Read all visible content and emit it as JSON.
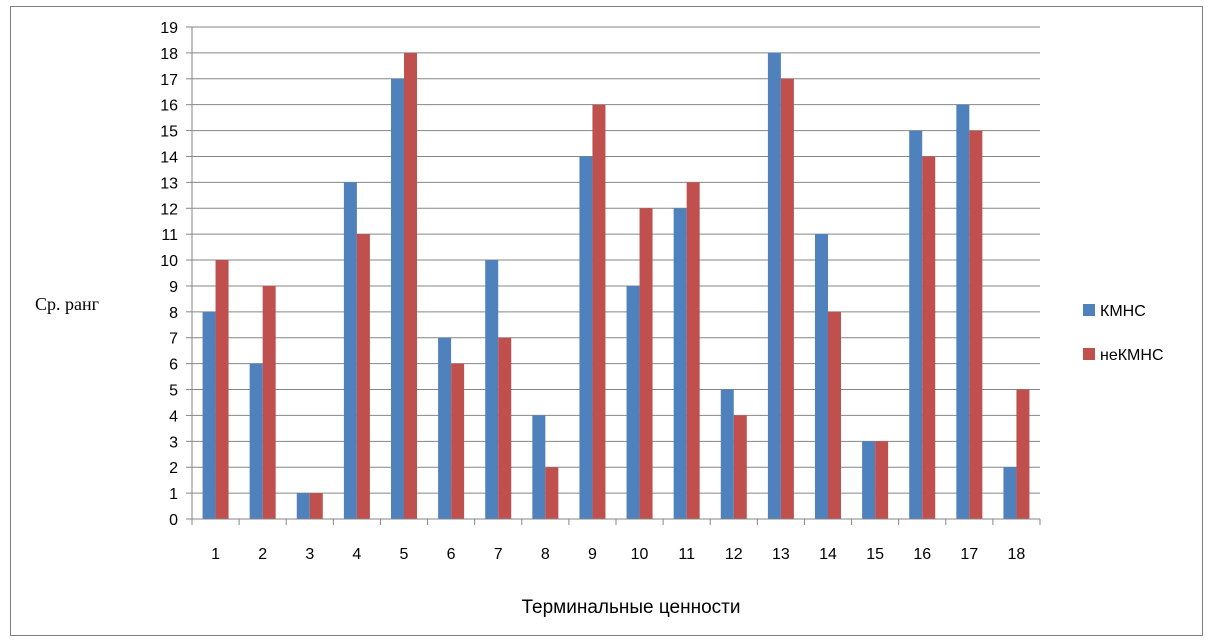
{
  "chart_data": {
    "type": "bar",
    "title": "",
    "xlabel": "Терминальные ценности",
    "ylabel": "Ср. ранг",
    "ylim": [
      0,
      19
    ],
    "yticks": [
      0,
      1,
      2,
      3,
      4,
      5,
      6,
      7,
      8,
      9,
      10,
      11,
      12,
      13,
      14,
      15,
      16,
      17,
      18,
      19
    ],
    "grid": true,
    "legend_position": "right",
    "categories": [
      "1",
      "2",
      "3",
      "4",
      "5",
      "6",
      "7",
      "8",
      "9",
      "10",
      "11",
      "12",
      "13",
      "14",
      "15",
      "16",
      "17",
      "18"
    ],
    "series": [
      {
        "name": "КМНС",
        "color": "#4f81bd",
        "values": [
          8,
          6,
          1,
          13,
          17,
          7,
          10,
          4,
          14,
          9,
          12,
          5,
          18,
          11,
          3,
          15,
          16,
          2
        ]
      },
      {
        "name": "неКМНС",
        "color": "#c0504d",
        "values": [
          10,
          9,
          1,
          11,
          18,
          6,
          7,
          2,
          16,
          12,
          13,
          4,
          17,
          8,
          3,
          14,
          15,
          5
        ]
      }
    ]
  }
}
